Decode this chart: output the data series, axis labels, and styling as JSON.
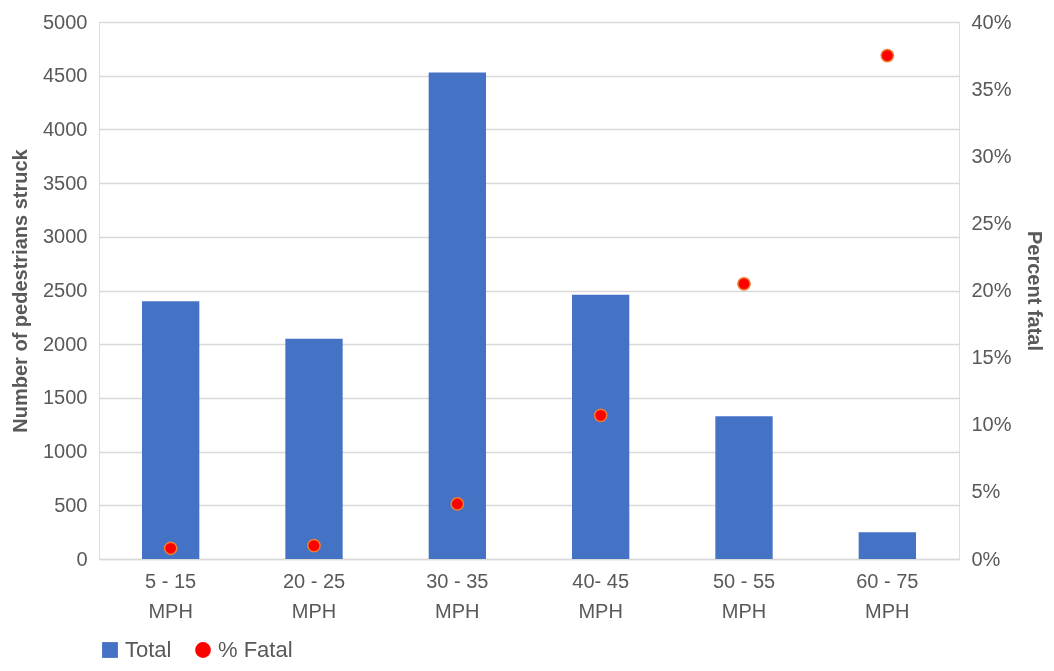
{
  "chart_data": {
    "type": "bar",
    "categories": [
      "5 - 15 MPH",
      "20 - 25 MPH",
      "30 - 35 MPH",
      "40- 45 MPH",
      "50 - 55 MPH",
      "60 - 75 MPH"
    ],
    "ylabel": "Number  of pedestrians struck",
    "y2label": "Percent fatal",
    "series": [
      {
        "name": "Total",
        "color": "#4472c4",
        "values": [
          2400,
          2050,
          4530,
          2460,
          1330,
          250
        ]
      },
      {
        "name": "% Fatal",
        "type": "scatter",
        "axis": "y2",
        "color": "#ff0000",
        "values": [
          0.8,
          1.0,
          4.1,
          10.7,
          20.5,
          37.5
        ]
      }
    ],
    "ylim": [
      0,
      5000
    ],
    "yticks": [
      0,
      500,
      1000,
      1500,
      2000,
      2500,
      3000,
      3500,
      4000,
      4500,
      5000
    ],
    "y2lim": [
      0,
      40
    ],
    "y2ticks": [
      {
        "value": 0,
        "label": "0%"
      },
      {
        "value": 5,
        "label": "5%"
      },
      {
        "value": 10,
        "label": "10%"
      },
      {
        "value": 15,
        "label": "15%"
      },
      {
        "value": 20,
        "label": "20%"
      },
      {
        "value": 25,
        "label": "25%"
      },
      {
        "value": 30,
        "label": "30%"
      },
      {
        "value": 35,
        "label": "35%"
      },
      {
        "value": 40,
        "label": "40%"
      }
    ],
    "grid": "y",
    "legend": "bottom",
    "marker": "circle"
  }
}
